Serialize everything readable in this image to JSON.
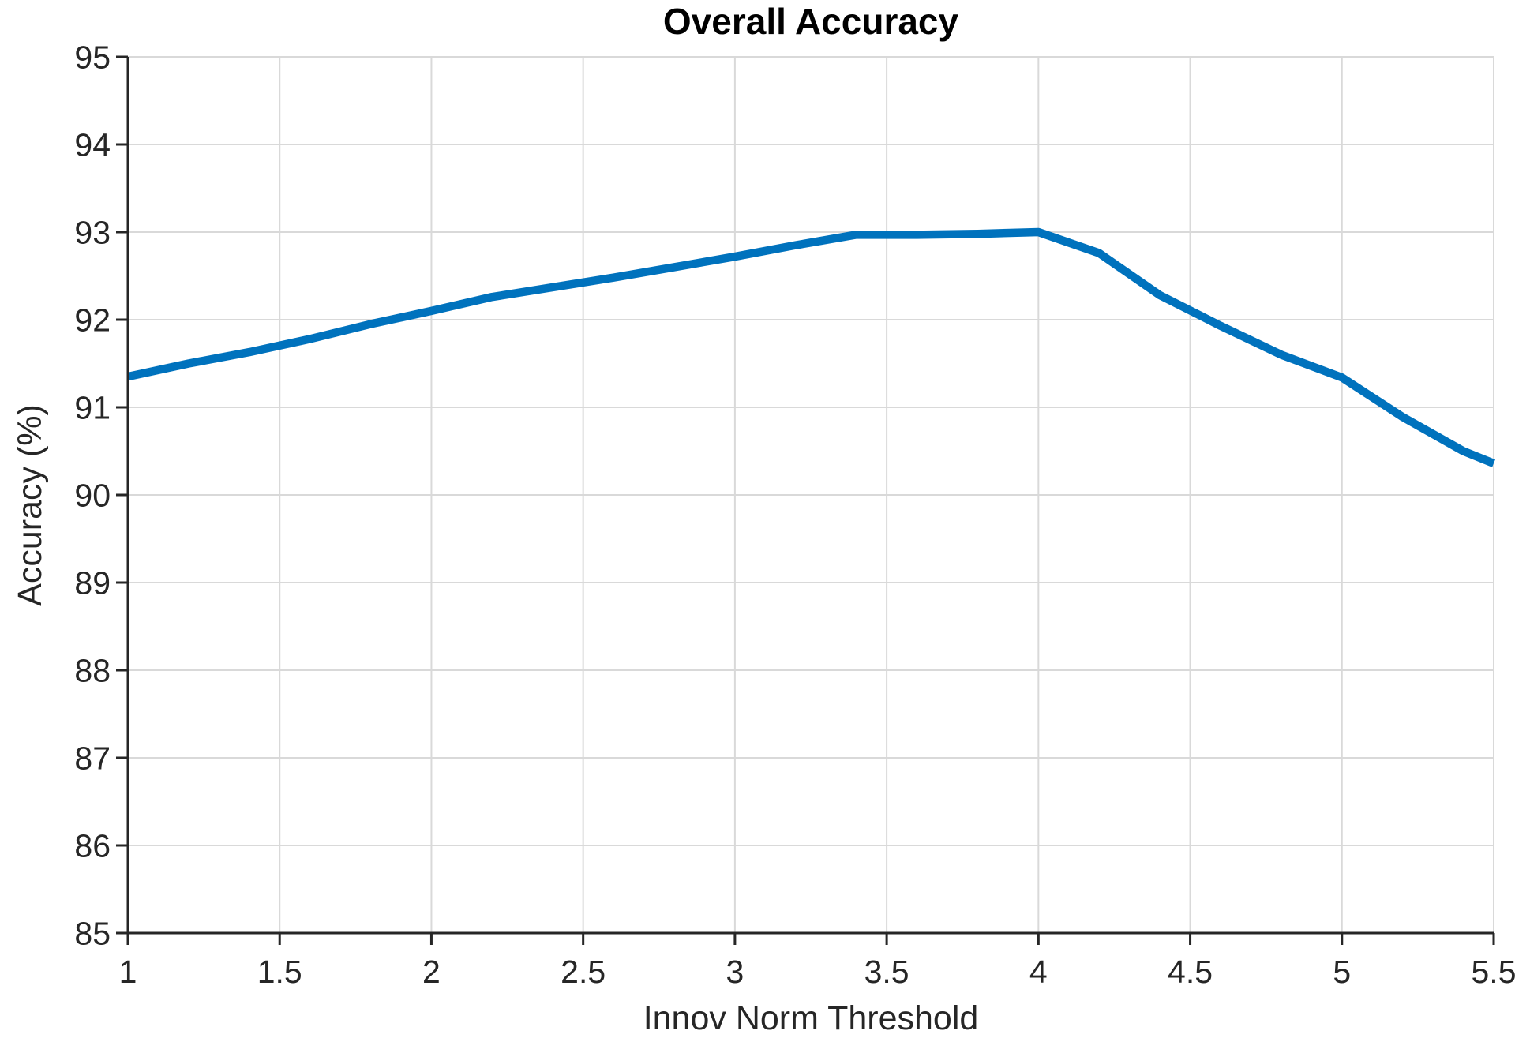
{
  "colors": {
    "background": "#ffffff",
    "line": "#0072bd",
    "grid": "#d9d9d9",
    "axis": "#262626",
    "title_text": "#000000",
    "label_text": "#262626"
  },
  "chart_data": {
    "type": "line",
    "title": "Overall Accuracy",
    "xlabel": "Innov Norm Threshold",
    "ylabel": "Accuracy (%)",
    "xlim": [
      1,
      5.5
    ],
    "ylim": [
      85,
      95
    ],
    "xticks": [
      1,
      1.5,
      2,
      2.5,
      3,
      3.5,
      4,
      4.5,
      5,
      5.5
    ],
    "yticks": [
      85,
      86,
      87,
      88,
      89,
      90,
      91,
      92,
      93,
      94,
      95
    ],
    "grid": true,
    "legend_position": "none",
    "series": [
      {
        "name": "Overall Accuracy",
        "color": "#0072bd",
        "x": [
          1.0,
          1.2,
          1.4,
          1.6,
          1.8,
          2.0,
          2.2,
          2.4,
          2.6,
          2.8,
          3.0,
          3.2,
          3.4,
          3.6,
          3.8,
          4.0,
          4.2,
          4.4,
          4.6,
          4.8,
          5.0,
          5.2,
          5.4,
          5.5
        ],
        "y": [
          91.35,
          91.5,
          91.63,
          91.78,
          91.95,
          92.1,
          92.26,
          92.37,
          92.48,
          92.6,
          92.72,
          92.85,
          92.97,
          92.97,
          92.98,
          93.0,
          92.76,
          92.28,
          91.93,
          91.6,
          91.34,
          90.89,
          90.5,
          90.36
        ]
      }
    ]
  }
}
